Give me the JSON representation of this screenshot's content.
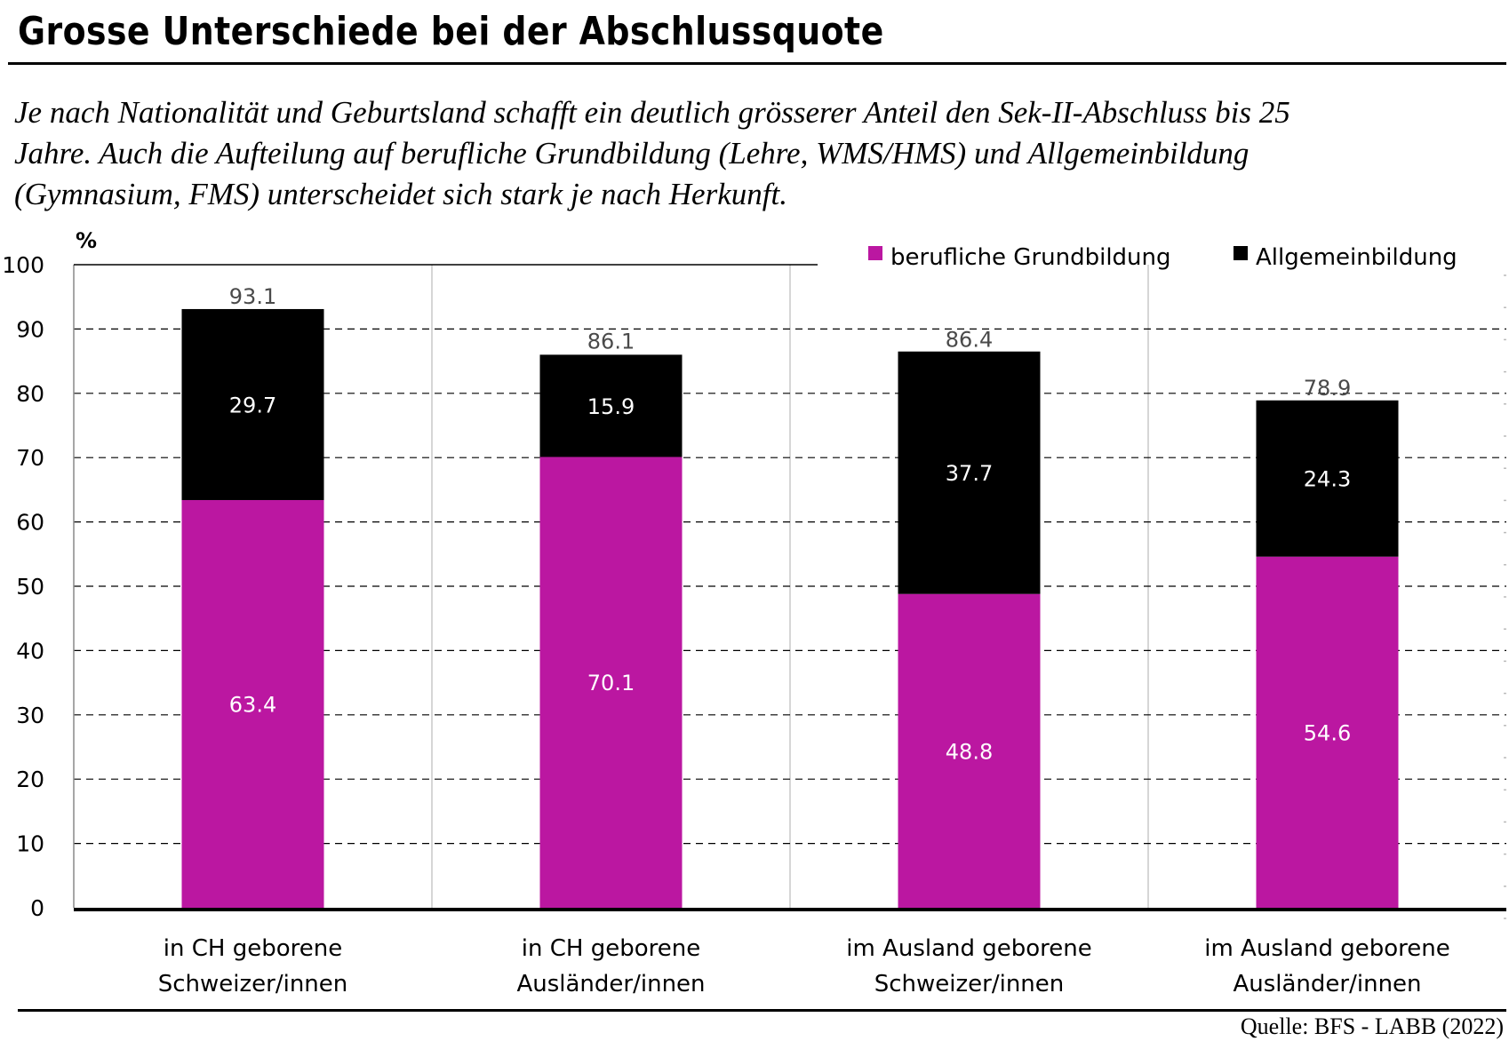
{
  "header": {
    "title": "Grosse Unterschiede bei der Abschlussquote",
    "subtitle_lines": [
      "Je nach Nationalität und Geburtsland schafft ein deutlich grösserer Anteil den Sek-II-Abschluss bis 25",
      "Jahre. Auch die Aufteilung auf berufliche Grundbildung (Lehre, WMS/HMS) und Allgemeinbildung",
      "(Gymnasium, FMS) unterscheidet sich stark je nach Herkunft."
    ]
  },
  "footer": {
    "source": "Quelle:  BFS - LABB (2022)"
  },
  "colors": {
    "berufliche": "#BB17A1",
    "allgemein": "#000000",
    "total_label": "#4a4a4a",
    "grid": "#000000",
    "vgrid": "#c8c8c8"
  },
  "chart_data": {
    "type": "bar",
    "stacked": true,
    "title": "Grosse Unterschiede bei der Abschlussquote",
    "ylabel": "%",
    "xlabel": "",
    "ylim": [
      0,
      100
    ],
    "yticks": [
      "0",
      "10",
      "20",
      "30",
      "40",
      "50",
      "60",
      "70",
      "80",
      "90",
      "100"
    ],
    "grid": true,
    "legend_position": "top-right",
    "categories": [
      [
        "in CH geborene",
        "Schweizer/innen"
      ],
      [
        "in CH geborene",
        "Ausländer/innen"
      ],
      [
        "im Ausland geborene",
        "Schweizer/innen"
      ],
      [
        "im Ausland geborene",
        "Ausländer/innen"
      ]
    ],
    "series": [
      {
        "name": "berufliche Grundbildung",
        "values": [
          63.4,
          70.1,
          48.8,
          54.6
        ],
        "labels": [
          "63.4",
          "70.1",
          "48.8",
          "54.6"
        ]
      },
      {
        "name": "Allgemeinbildung",
        "values": [
          29.7,
          15.9,
          37.7,
          24.3
        ],
        "labels": [
          "29.7",
          "15.9",
          "37.7",
          "24.3"
        ]
      }
    ],
    "totals": [
      93.1,
      86.1,
      86.4,
      78.9
    ],
    "total_labels": [
      "93.1",
      "86.1",
      "86.4",
      "78.9"
    ]
  }
}
